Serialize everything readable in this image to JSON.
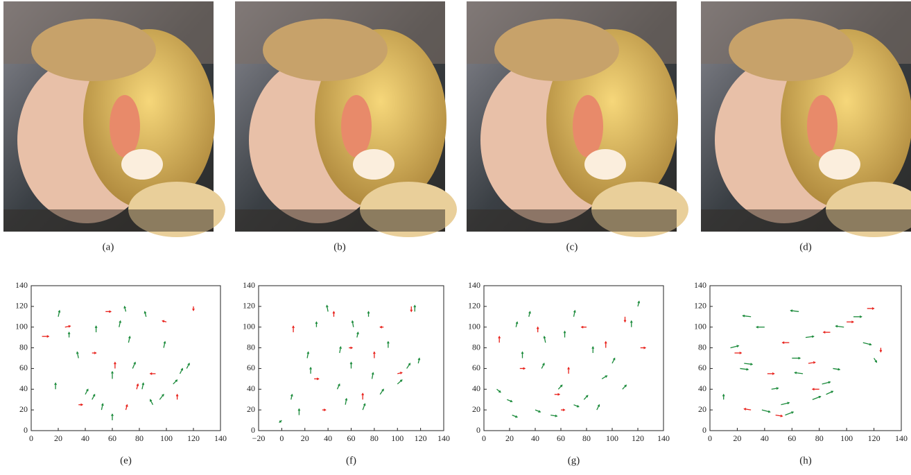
{
  "figure": {
    "photos": [
      {
        "caption": "(a)"
      },
      {
        "caption": "(b)"
      },
      {
        "caption": "(c)"
      },
      {
        "caption": "(d)"
      }
    ]
  },
  "chart_data": [
    {
      "type": "quiver",
      "caption": "(e)",
      "xlim": [
        0,
        140
      ],
      "ylim": [
        0,
        140
      ],
      "xticks": [
        0,
        20,
        40,
        60,
        80,
        100,
        120,
        140
      ],
      "yticks": [
        0,
        20,
        40,
        60,
        80,
        100,
        120,
        140
      ],
      "series": [
        {
          "color": "#1a8a3a",
          "x": [
            20,
            28,
            35,
            45,
            52,
            60,
            65,
            70,
            75,
            82,
            90,
            98,
            105,
            110,
            60,
            72,
            85,
            48,
            40,
            95,
            18,
            115
          ],
          "y": [
            110,
            90,
            70,
            30,
            20,
            50,
            100,
            115,
            60,
            40,
            25,
            80,
            45,
            55,
            10,
            85,
            110,
            95,
            35,
            30,
            40,
            60
          ],
          "u": [
            1,
            0,
            -1,
            2,
            1,
            0,
            1,
            -1,
            2,
            1,
            -2,
            1,
            3,
            2,
            0,
            1,
            -1,
            0,
            2,
            3,
            0,
            2
          ],
          "v": [
            6,
            5,
            6,
            5,
            6,
            7,
            6,
            5,
            6,
            6,
            5,
            6,
            4,
            5,
            6,
            6,
            5,
            6,
            5,
            5,
            6,
            5
          ]
        },
        {
          "color": "#e8201a",
          "x": [
            8,
            25,
            45,
            62,
            78,
            92,
            108,
            120,
            55,
            70,
            35,
            100
          ],
          "y": [
            91,
            100,
            75,
            60,
            40,
            55,
            30,
            120,
            115,
            20,
            25,
            105
          ],
          "u": [
            5,
            4,
            3,
            0,
            1,
            -4,
            0,
            0,
            4,
            1,
            3,
            -3
          ],
          "v": [
            0,
            1,
            0,
            6,
            5,
            0,
            5,
            -4,
            0,
            5,
            0,
            1
          ]
        }
      ]
    },
    {
      "type": "quiver",
      "caption": "(f)",
      "xlim": [
        -20,
        140
      ],
      "ylim": [
        0,
        140
      ],
      "xticks": [
        {
          "value": -20,
          "label": "−20"
        },
        0,
        20,
        40,
        60,
        80,
        100,
        120,
        140
      ],
      "yticks": [
        0,
        20,
        40,
        60,
        80,
        100,
        120,
        140
      ],
      "series": [
        {
          "color": "#1a8a3a",
          "x": [
            0,
            8,
            15,
            22,
            30,
            40,
            48,
            55,
            60,
            65,
            70,
            78,
            85,
            92,
            100,
            108,
            115,
            118,
            62,
            75,
            50,
            25
          ],
          "y": [
            10,
            30,
            15,
            70,
            100,
            115,
            40,
            25,
            60,
            90,
            20,
            50,
            35,
            80,
            45,
            60,
            115,
            65,
            100,
            110,
            75,
            55
          ],
          "u": [
            -2,
            1,
            0,
            1,
            0,
            -1,
            2,
            1,
            0,
            1,
            2,
            1,
            3,
            0,
            4,
            3,
            0,
            1,
            -1,
            0,
            1,
            0
          ],
          "v": [
            -2,
            5,
            6,
            6,
            5,
            6,
            5,
            6,
            6,
            5,
            6,
            6,
            5,
            6,
            4,
            5,
            6,
            5,
            6,
            5,
            6,
            6
          ]
        },
        {
          "color": "#e8201a",
          "x": [
            10,
            28,
            45,
            58,
            70,
            88,
            100,
            112,
            35,
            80
          ],
          "y": [
            95,
            50,
            110,
            80,
            30,
            100,
            55,
            120,
            20,
            70
          ],
          "u": [
            0,
            4,
            0,
            3,
            0,
            -3,
            4,
            0,
            3,
            0
          ],
          "v": [
            6,
            0,
            5,
            0,
            6,
            0,
            1,
            -5,
            0,
            6
          ]
        }
      ]
    },
    {
      "type": "quiver",
      "caption": "(g)",
      "xlim": [
        0,
        140
      ],
      "ylim": [
        0,
        140
      ],
      "xticks": [
        0,
        20,
        40,
        60,
        80,
        100,
        120,
        140
      ],
      "yticks": [
        0,
        20,
        40,
        60,
        80,
        100,
        120,
        140
      ],
      "series": [
        {
          "color": "#1a8a3a",
          "x": [
            10,
            18,
            25,
            30,
            40,
            45,
            52,
            58,
            63,
            70,
            78,
            85,
            92,
            100,
            108,
            115,
            120,
            48,
            35,
            70,
            88,
            22
          ],
          "y": [
            40,
            30,
            100,
            70,
            20,
            60,
            15,
            40,
            90,
            110,
            30,
            75,
            50,
            65,
            40,
            100,
            120,
            85,
            110,
            25,
            20,
            15
          ],
          "u": [
            3,
            4,
            1,
            0,
            4,
            2,
            5,
            3,
            0,
            1,
            3,
            0,
            4,
            2,
            3,
            0,
            1,
            -1,
            1,
            4,
            2,
            4
          ],
          "v": [
            -3,
            -2,
            5,
            6,
            -2,
            5,
            -1,
            4,
            6,
            6,
            4,
            6,
            3,
            5,
            4,
            6,
            5,
            6,
            5,
            -2,
            5,
            -2
          ]
        },
        {
          "color": "#e8201a",
          "x": [
            12,
            28,
            42,
            55,
            66,
            80,
            95,
            110,
            122,
            60
          ],
          "y": [
            85,
            60,
            95,
            35,
            55,
            100,
            80,
            110,
            80,
            20
          ],
          "u": [
            0,
            4,
            0,
            4,
            0,
            -4,
            0,
            0,
            4,
            3
          ],
          "v": [
            6,
            0,
            5,
            0,
            6,
            0,
            6,
            -5,
            0,
            0
          ]
        }
      ]
    },
    {
      "type": "quiver",
      "caption": "(h)",
      "xlim": [
        0,
        140
      ],
      "ylim": [
        0,
        140
      ],
      "xticks": [
        0,
        20,
        40,
        60,
        80,
        100,
        120,
        140
      ],
      "yticks": [
        0,
        20,
        40,
        60,
        80,
        100,
        120,
        140
      ],
      "series": [
        {
          "color": "#1a8a3a",
          "x": [
            10,
            15,
            22,
            30,
            38,
            45,
            52,
            60,
            68,
            75,
            82,
            90,
            98,
            105,
            112,
            120,
            55,
            40,
            25,
            70,
            85,
            65
          ],
          "y": [
            30,
            80,
            60,
            110,
            20,
            40,
            25,
            70,
            55,
            30,
            45,
            60,
            100,
            110,
            85,
            70,
            15,
            100,
            65,
            90,
            35,
            115
          ],
          "u": [
            0,
            6,
            6,
            -6,
            6,
            5,
            6,
            6,
            -6,
            6,
            6,
            5,
            -6,
            6,
            6,
            2,
            6,
            -6,
            6,
            6,
            5,
            -6
          ],
          "v": [
            5,
            2,
            -1,
            1,
            -2,
            1,
            2,
            0,
            1,
            3,
            2,
            -1,
            1,
            0,
            -2,
            -4,
            3,
            0,
            -1,
            1,
            3,
            1
          ]
        },
        {
          "color": "#e8201a",
          "x": [
            18,
            30,
            42,
            58,
            72,
            88,
            100,
            115,
            125,
            48,
            80
          ],
          "y": [
            75,
            20,
            55,
            85,
            65,
            95,
            105,
            118,
            80,
            15,
            40
          ],
          "u": [
            5,
            -5,
            5,
            -5,
            5,
            -5,
            5,
            5,
            0,
            5,
            -5
          ],
          "v": [
            0,
            1,
            0,
            0,
            1,
            0,
            0,
            0,
            -4,
            -1,
            0
          ]
        }
      ]
    }
  ]
}
